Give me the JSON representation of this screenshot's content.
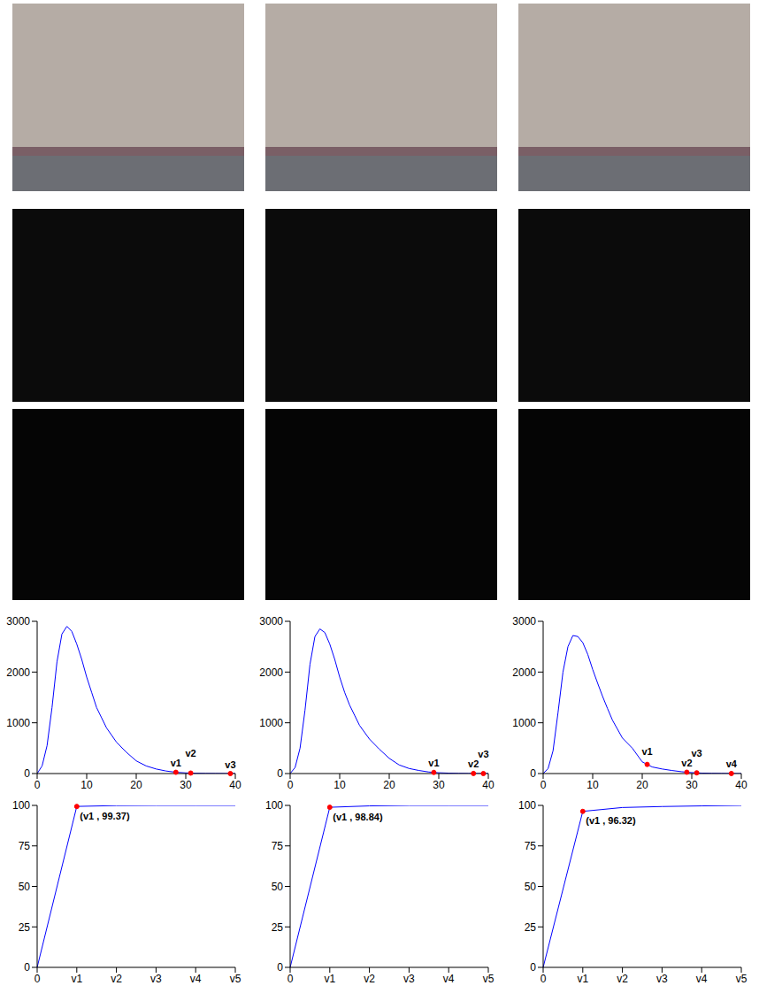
{
  "chart_data": [
    {
      "type": "line",
      "x": [
        0,
        1,
        2,
        3,
        4,
        5,
        6,
        7,
        8,
        9,
        10,
        11,
        12,
        13,
        14,
        16,
        18,
        20,
        22,
        24,
        26,
        28,
        30,
        32,
        34,
        36,
        38,
        40
      ],
      "values": [
        0,
        150,
        550,
        1300,
        2200,
        2750,
        2900,
        2800,
        2550,
        2250,
        1900,
        1600,
        1300,
        1100,
        900,
        620,
        420,
        250,
        150,
        90,
        50,
        25,
        12,
        6,
        3,
        2,
        1,
        0
      ],
      "color": "#0000ff",
      "xlim": [
        0,
        40
      ],
      "xticks": [
        0,
        10,
        20,
        30,
        40
      ],
      "ylim": [
        0,
        3000
      ],
      "yticks": [
        0,
        1000,
        2000,
        3000
      ],
      "annotations": [
        {
          "x": 28,
          "y": 25,
          "text": "v1",
          "color": "#ff0000"
        },
        {
          "x": 31,
          "y": 9,
          "text": "v2",
          "color": "#ff0000"
        },
        {
          "x": 39,
          "y": 0,
          "text": "v3",
          "color": "#ff0000"
        }
      ]
    },
    {
      "type": "line",
      "x": [
        0,
        1,
        2,
        3,
        4,
        5,
        6,
        7,
        8,
        9,
        10,
        11,
        12,
        13,
        14,
        16,
        18,
        20,
        22,
        24,
        26,
        28,
        30,
        32,
        34,
        36,
        38,
        40
      ],
      "values": [
        0,
        120,
        500,
        1250,
        2150,
        2700,
        2850,
        2780,
        2550,
        2250,
        1900,
        1600,
        1350,
        1150,
        950,
        680,
        480,
        300,
        170,
        100,
        60,
        30,
        15,
        8,
        4,
        2,
        1,
        0
      ],
      "color": "#0000ff",
      "xlim": [
        0,
        40
      ],
      "xticks": [
        0,
        10,
        20,
        30,
        40
      ],
      "ylim": [
        0,
        3000
      ],
      "yticks": [
        0,
        1000,
        2000,
        3000
      ],
      "annotations": [
        {
          "x": 29,
          "y": 22,
          "text": "v1",
          "color": "#ff0000"
        },
        {
          "x": 37,
          "y": 2,
          "text": "v2",
          "color": "#ff0000"
        },
        {
          "x": 39,
          "y": 0,
          "text": "v3",
          "color": "#ff0000"
        }
      ]
    },
    {
      "type": "line",
      "x": [
        0,
        1,
        2,
        3,
        4,
        5,
        6,
        7,
        8,
        9,
        10,
        11,
        12,
        13,
        14,
        16,
        18,
        20,
        22,
        24,
        26,
        28,
        30,
        32,
        34,
        36,
        38,
        40
      ],
      "values": [
        0,
        100,
        450,
        1200,
        2000,
        2500,
        2720,
        2700,
        2580,
        2350,
        2050,
        1780,
        1520,
        1280,
        1050,
        700,
        500,
        230,
        130,
        90,
        60,
        35,
        18,
        9,
        5,
        3,
        1,
        0
      ],
      "color": "#0000ff",
      "xlim": [
        0,
        40
      ],
      "xticks": [
        0,
        10,
        20,
        30,
        40
      ],
      "ylim": [
        0,
        3000
      ],
      "yticks": [
        0,
        1000,
        2000,
        3000
      ],
      "annotations": [
        {
          "x": 21,
          "y": 180,
          "text": "v1",
          "color": "#ff0000"
        },
        {
          "x": 29,
          "y": 26,
          "text": "v2",
          "color": "#ff0000"
        },
        {
          "x": 31,
          "y": 14,
          "text": "v3",
          "color": "#ff0000"
        },
        {
          "x": 38,
          "y": 1,
          "text": "v4",
          "color": "#ff0000"
        }
      ]
    },
    {
      "type": "line",
      "categories": [
        "0",
        "v1",
        "v2",
        "v3",
        "v4",
        "v5"
      ],
      "values": [
        0,
        99.37,
        99.9,
        100,
        100,
        100
      ],
      "color": "#0000ff",
      "ylim": [
        0,
        100
      ],
      "yticks": [
        0,
        25,
        50,
        75,
        100
      ],
      "annotations": [
        {
          "x": "v1",
          "y": 99.37,
          "text": "(v1 , 99.37)",
          "color": "#ff0000"
        }
      ]
    },
    {
      "type": "line",
      "categories": [
        "0",
        "v1",
        "v2",
        "v3",
        "v4",
        "v5"
      ],
      "values": [
        0,
        98.84,
        99.7,
        100,
        100,
        100
      ],
      "color": "#0000ff",
      "ylim": [
        0,
        100
      ],
      "yticks": [
        0,
        25,
        50,
        75,
        100
      ],
      "annotations": [
        {
          "x": "v1",
          "y": 98.84,
          "text": "(v1 , 98.84)",
          "color": "#ff0000"
        }
      ]
    },
    {
      "type": "line",
      "categories": [
        "0",
        "v1",
        "v2",
        "v3",
        "v4",
        "v5"
      ],
      "values": [
        0,
        96.32,
        98.7,
        99.3,
        99.7,
        100
      ],
      "color": "#0000ff",
      "ylim": [
        0,
        100
      ],
      "yticks": [
        0,
        25,
        50,
        75,
        100
      ],
      "annotations": [
        {
          "x": "v1",
          "y": 96.32,
          "text": "(v1 , 96.32)",
          "color": "#ff0000"
        }
      ]
    }
  ]
}
